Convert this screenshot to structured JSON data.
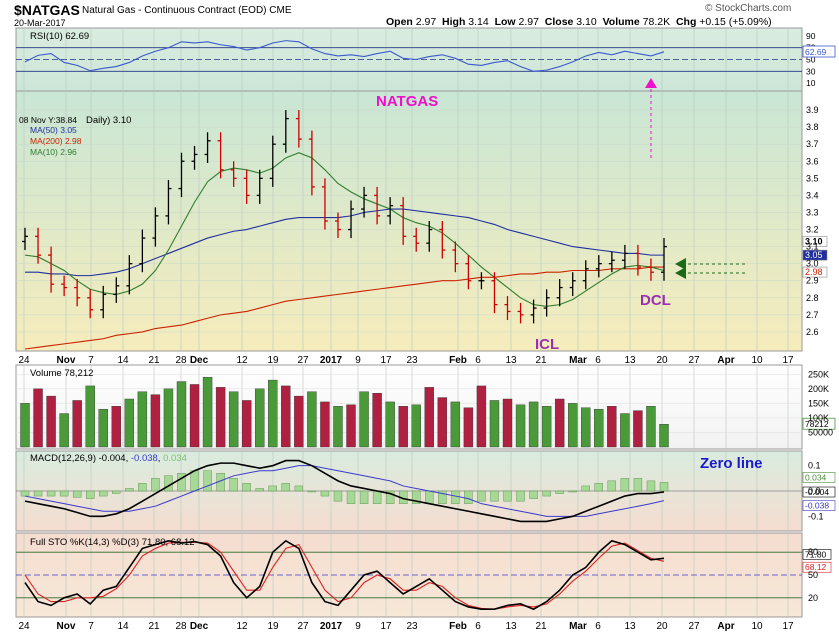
{
  "header": {
    "symbol": "$NATGAS",
    "description": "Natural Gas - Continuous Contract (EOD)  CME",
    "date": "20-Mar-2017",
    "brand": "© StockCharts.com",
    "open_label": "Open",
    "open": "2.97",
    "high_label": "High",
    "high": "3.14",
    "low_label": "Low",
    "low": "2.97",
    "close_label": "Close",
    "close": "3.10",
    "volume_label": "Volume",
    "volume": "78.2K",
    "chg_label": "Chg",
    "chg": "+0.15 (+5.09%)"
  },
  "colors": {
    "up": "#000000",
    "down": "#cc0000",
    "vol_up": "#4a9a3a",
    "vol_down": "#b02040",
    "ma50": "#1f2fa0",
    "ma200": "#cc2200",
    "ma10": "#2e7d2e",
    "rsi_line": "#3a5acc",
    "annotation_magenta": "#ee10cc",
    "annotation_purple": "#9a30b0",
    "annotation_blue": "#1a1acc",
    "annotation_arrow": "#1a6a1a"
  },
  "chart_data": [
    {
      "type": "line",
      "panel": "rsi",
      "title": "RSI(10) 62.69",
      "ylim": [
        0,
        100
      ],
      "ticks": [
        "90",
        "70",
        "50",
        "30",
        "10"
      ],
      "levels": [
        70,
        50,
        30
      ],
      "last_value_label": "62.69",
      "series": [
        {
          "name": "RSI(10)",
          "values": [
            46,
            57,
            60,
            45,
            40,
            31,
            35,
            38,
            45,
            56,
            64,
            70,
            80,
            78,
            80,
            75,
            72,
            66,
            70,
            78,
            82,
            80,
            68,
            60,
            56,
            58,
            55,
            60,
            64,
            52,
            50,
            55,
            58,
            52,
            42,
            40,
            45,
            48,
            38,
            30,
            32,
            38,
            46,
            56,
            62,
            58,
            64,
            60,
            56,
            63
          ]
        }
      ]
    },
    {
      "type": "candlestick",
      "panel": "price",
      "legend": {
        "hover": "08 Nov Y:38.84",
        "daily": "Daily) 3.10",
        "ma50": "MA(50) 3.05",
        "ma200": "MA(200) 2.98",
        "ma10": "MA(10) 2.96"
      },
      "ylim": [
        2.5,
        4.0
      ],
      "y_ticks": [
        "3.9",
        "3.8",
        "3.7",
        "3.6",
        "3.5",
        "3.4",
        "3.3",
        "3.2",
        "3.1",
        "3.0",
        "2.9",
        "2.8",
        "2.7",
        "2.6"
      ],
      "last_labels": [
        "3.10",
        "3.05",
        "2.98"
      ],
      "close": [
        3.16,
        3.05,
        2.88,
        2.86,
        2.8,
        2.73,
        2.82,
        2.87,
        3.0,
        3.15,
        3.28,
        3.44,
        3.6,
        3.64,
        3.72,
        3.55,
        3.5,
        3.4,
        3.5,
        3.7,
        3.85,
        3.73,
        3.45,
        3.25,
        3.2,
        3.32,
        3.4,
        3.28,
        3.34,
        3.16,
        3.12,
        3.2,
        3.08,
        3.0,
        2.9,
        2.9,
        2.76,
        2.72,
        2.7,
        2.74,
        2.8,
        2.86,
        2.9,
        2.97,
        3.0,
        3.02,
        3.06,
        2.98,
        2.95,
        3.1
      ],
      "ma50": [
        2.95,
        2.95,
        2.94,
        2.94,
        2.93,
        2.93,
        2.94,
        2.95,
        2.97,
        3.0,
        3.03,
        3.06,
        3.09,
        3.12,
        3.15,
        3.17,
        3.19,
        3.2,
        3.22,
        3.24,
        3.26,
        3.27,
        3.27,
        3.27,
        3.27,
        3.28,
        3.3,
        3.31,
        3.32,
        3.32,
        3.31,
        3.3,
        3.29,
        3.28,
        3.27,
        3.25,
        3.23,
        3.2,
        3.18,
        3.16,
        3.14,
        3.12,
        3.1,
        3.09,
        3.08,
        3.07,
        3.06,
        3.06,
        3.05,
        3.05
      ],
      "ma200": [
        2.5,
        2.51,
        2.52,
        2.53,
        2.54,
        2.55,
        2.56,
        2.58,
        2.59,
        2.6,
        2.62,
        2.63,
        2.64,
        2.66,
        2.68,
        2.7,
        2.71,
        2.72,
        2.74,
        2.76,
        2.78,
        2.79,
        2.8,
        2.81,
        2.82,
        2.83,
        2.84,
        2.85,
        2.86,
        2.87,
        2.88,
        2.89,
        2.9,
        2.9,
        2.91,
        2.92,
        2.92,
        2.93,
        2.94,
        2.94,
        2.95,
        2.95,
        2.96,
        2.96,
        2.96,
        2.97,
        2.97,
        2.97,
        2.98,
        2.98
      ],
      "ma10": [
        3.05,
        3.04,
        3.0,
        2.96,
        2.9,
        2.85,
        2.83,
        2.82,
        2.84,
        2.88,
        2.96,
        3.08,
        3.22,
        3.36,
        3.48,
        3.54,
        3.56,
        3.55,
        3.53,
        3.56,
        3.62,
        3.65,
        3.62,
        3.55,
        3.47,
        3.42,
        3.38,
        3.35,
        3.32,
        3.27,
        3.24,
        3.22,
        3.18,
        3.12,
        3.05,
        2.98,
        2.92,
        2.86,
        2.8,
        2.76,
        2.75,
        2.76,
        2.79,
        2.84,
        2.89,
        2.94,
        2.98,
        2.99,
        2.98,
        2.96
      ],
      "annotations": {
        "title": "NATGAS",
        "icl": "ICL",
        "dcl": "DCL"
      }
    },
    {
      "type": "bar",
      "panel": "volume",
      "title": "Volume 78,212",
      "ylim": [
        0,
        275000
      ],
      "ticks": [
        "250K",
        "200K",
        "150K",
        "100K",
        "50000"
      ],
      "last_value_label": "78212",
      "values": [
        150000,
        200000,
        175000,
        115000,
        160000,
        210000,
        130000,
        140000,
        165000,
        190000,
        180000,
        200000,
        225000,
        215000,
        240000,
        205000,
        190000,
        160000,
        200000,
        230000,
        210000,
        175000,
        190000,
        155000,
        140000,
        145000,
        190000,
        185000,
        155000,
        140000,
        145000,
        205000,
        170000,
        155000,
        135000,
        210000,
        160000,
        165000,
        145000,
        155000,
        140000,
        165000,
        150000,
        135000,
        130000,
        140000,
        115000,
        125000,
        140000,
        78212
      ],
      "up": [
        true,
        false,
        false,
        true,
        false,
        true,
        true,
        false,
        true,
        true,
        false,
        true,
        true,
        false,
        true,
        false,
        true,
        false,
        true,
        true,
        false,
        false,
        true,
        false,
        true,
        false,
        true,
        false,
        true,
        false,
        true,
        false,
        false,
        true,
        false,
        false,
        true,
        false,
        true,
        true,
        true,
        false,
        true,
        true,
        true,
        false,
        true,
        false,
        true,
        true
      ]
    },
    {
      "type": "line",
      "panel": "macd",
      "title": "MACD(12,26,9) -0.004, -0.038, 0.034",
      "title_parts": [
        "MACD(12,26,9) -0.004, ",
        "-0.038",
        ", ",
        "0.034"
      ],
      "ylim": [
        -0.15,
        0.15
      ],
      "ticks": [
        "0.1",
        "0.0",
        "-0.1"
      ],
      "last_value_labels": [
        "0.034",
        "-0.004",
        "-0.038"
      ],
      "annotation": "Zero line",
      "series": [
        {
          "name": "MACD",
          "values": [
            -0.04,
            -0.05,
            -0.06,
            -0.07,
            -0.085,
            -0.1,
            -0.1,
            -0.09,
            -0.07,
            -0.04,
            -0.01,
            0.02,
            0.05,
            0.08,
            0.1,
            0.11,
            0.11,
            0.1,
            0.09,
            0.1,
            0.12,
            0.12,
            0.1,
            0.07,
            0.04,
            0.02,
            0.01,
            0.0,
            -0.01,
            -0.03,
            -0.04,
            -0.05,
            -0.06,
            -0.07,
            -0.08,
            -0.09,
            -0.1,
            -0.11,
            -0.12,
            -0.12,
            -0.12,
            -0.11,
            -0.1,
            -0.08,
            -0.06,
            -0.04,
            -0.02,
            -0.01,
            -0.01,
            -0.004
          ]
        },
        {
          "name": "Signal",
          "values": [
            -0.02,
            -0.03,
            -0.04,
            -0.05,
            -0.06,
            -0.07,
            -0.08,
            -0.08,
            -0.08,
            -0.07,
            -0.06,
            -0.04,
            -0.02,
            0.0,
            0.02,
            0.04,
            0.06,
            0.07,
            0.08,
            0.08,
            0.09,
            0.1,
            0.1,
            0.09,
            0.08,
            0.07,
            0.06,
            0.05,
            0.04,
            0.02,
            0.01,
            0.0,
            -0.01,
            -0.02,
            -0.03,
            -0.05,
            -0.06,
            -0.07,
            -0.08,
            -0.09,
            -0.1,
            -0.1,
            -0.1,
            -0.1,
            -0.09,
            -0.08,
            -0.07,
            -0.06,
            -0.05,
            -0.038
          ]
        }
      ]
    },
    {
      "type": "line",
      "panel": "stochastics",
      "title": "Full STO %K(14,3) %D(3) 71.80, 68.12",
      "ylim": [
        0,
        100
      ],
      "ticks": [
        "80",
        "50",
        "20"
      ],
      "last_value_labels": [
        "71.80",
        "68.12"
      ],
      "series": [
        {
          "name": "%K",
          "values": [
            40,
            15,
            10,
            20,
            25,
            12,
            30,
            35,
            60,
            85,
            90,
            95,
            92,
            94,
            90,
            75,
            40,
            20,
            35,
            80,
            95,
            85,
            40,
            15,
            10,
            30,
            50,
            55,
            40,
            25,
            35,
            45,
            30,
            15,
            8,
            5,
            5,
            10,
            12,
            5,
            15,
            30,
            50,
            60,
            80,
            95,
            90,
            80,
            70,
            72
          ]
        },
        {
          "name": "%D",
          "values": [
            50,
            25,
            15,
            15,
            20,
            20,
            22,
            32,
            50,
            75,
            85,
            92,
            93,
            93,
            92,
            80,
            55,
            30,
            30,
            60,
            85,
            90,
            60,
            30,
            15,
            20,
            40,
            50,
            45,
            30,
            30,
            40,
            35,
            20,
            10,
            6,
            5,
            8,
            10,
            8,
            12,
            25,
            42,
            55,
            72,
            88,
            92,
            82,
            72,
            68
          ]
        }
      ]
    }
  ],
  "x_axis": {
    "labels": [
      "24",
      "Nov",
      "7",
      "14",
      "21",
      "28",
      "Dec",
      "12",
      "19",
      "27",
      "2017",
      "9",
      "17",
      "23",
      "Feb",
      "6",
      "13",
      "21",
      "Mar",
      "6",
      "13",
      "20",
      "27",
      "Apr",
      "10",
      "17"
    ]
  }
}
